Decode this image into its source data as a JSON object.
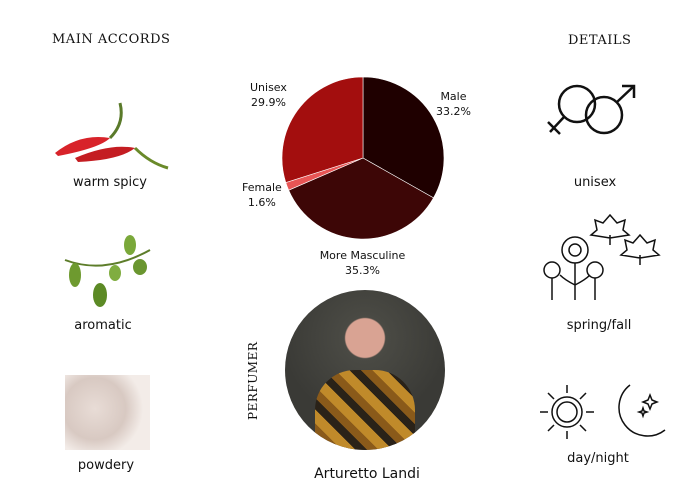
{
  "accords": {
    "title": "MAIN ACCORDS",
    "items": [
      {
        "label": "warm spicy",
        "icon": "chili-pepper-icon"
      },
      {
        "label": "aromatic",
        "icon": "herb-sprig-icon"
      },
      {
        "label": "powdery",
        "icon": "powder-icon"
      }
    ]
  },
  "details": {
    "title": "DETAILS",
    "items": [
      {
        "label": "unisex",
        "icon": "gender-symbols-icon"
      },
      {
        "label": "spring/fall",
        "icon": "flowers-leaves-icon"
      },
      {
        "label": "day/night",
        "icon": "sun-moon-icon"
      }
    ]
  },
  "perfumer": {
    "heading": "PERFUMER",
    "name": "Arturetto Landi"
  },
  "chart_data": {
    "type": "pie",
    "start": "top, clockwise",
    "slices": [
      {
        "name": "Male",
        "value": 33.2,
        "label": "33.2%",
        "color": "#1f0000"
      },
      {
        "name": "More Masculine",
        "value": 35.3,
        "label": "35.3%",
        "color": "#3d0606"
      },
      {
        "name": "Female",
        "value": 1.6,
        "label": "1.6%",
        "color": "#e85555"
      },
      {
        "name": "Unisex",
        "value": 29.9,
        "label": "29.9%",
        "color": "#a30e0e"
      }
    ]
  }
}
